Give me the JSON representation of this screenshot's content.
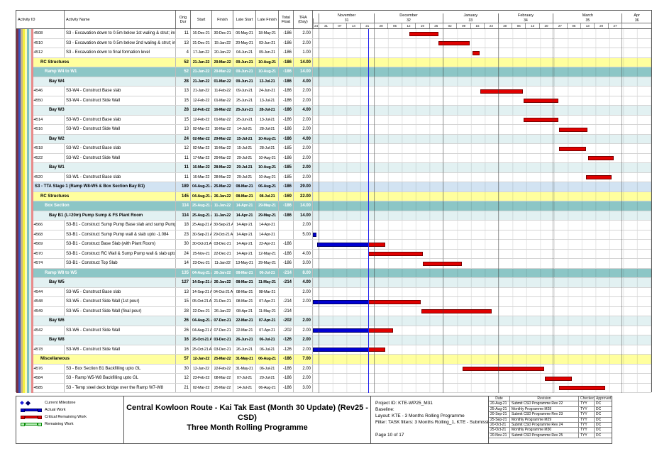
{
  "title": {
    "line1": "Central Kowloon Route - Kai Tak East (Month 30 Update) (Rev25 - CSD)",
    "line2": "Three Month Rolling Programme"
  },
  "info": {
    "project_id": "Project ID: KTE-WP25_M31",
    "baseline": "Baseline:",
    "layout": "Layout: KTE - 3 Months Rolling Programme",
    "filter": "Filter: TASK filters: 3 Months Rolling_1, KTE - Submission.",
    "page": "Page 10 of 17"
  },
  "legend": [
    {
      "key": "current-milestone",
      "label": "Current Milestone"
    },
    {
      "key": "actual-work",
      "label": "Actual Work"
    },
    {
      "key": "critical-remaining-work",
      "label": "Critical Remaining Work"
    },
    {
      "key": "remaining-work",
      "label": "Remaining Work"
    }
  ],
  "revisions": {
    "columns": [
      "Date",
      "Revision",
      "Checked",
      "Approved"
    ],
    "rows": [
      [
        "20-Aug-21",
        "Submit CSD Programme Rev 22",
        "TYY",
        "DC"
      ],
      [
        "25-Aug-21",
        "Monthly Programme M28",
        "TYY",
        "DC"
      ],
      [
        "20-Sep-21",
        "Submit CSD Programme Rev 23",
        "TYY",
        "DC"
      ],
      [
        "25-Sep-21",
        "Monthly Programme M29",
        "TYY",
        "DC"
      ],
      [
        "20-Oct-21",
        "Submit CSD Programme Rev 24",
        "TYY",
        "DC"
      ],
      [
        "25-Oct-21",
        "Monthly Programme M30",
        "TYY",
        "DC"
      ],
      [
        "20-Nov-21",
        "Submit CSD Programme Rev 25",
        "TYY",
        "DC"
      ]
    ]
  },
  "chart_data": {
    "type": "table",
    "subtype": "gantt",
    "columns": [
      "Activity ID",
      "Activity Name",
      "Orig Dur",
      "Start",
      "Finish",
      "Late Start",
      "Late Finish",
      "Total Float",
      "TRA (Day)"
    ],
    "timeline": {
      "window_start": "2021-10-28",
      "window_end": "2022-04-18",
      "total_days": 172,
      "data_date": "2021-11-25",
      "lead_week_label": "24",
      "months": [
        {
          "name": "November",
          "num": "31",
          "days": 28,
          "weeks": [
            "31",
            "07",
            "14",
            "21"
          ]
        },
        {
          "name": "December",
          "num": "32",
          "days": 35,
          "weeks": [
            "28",
            "05",
            "12",
            "19",
            "26"
          ]
        },
        {
          "name": "January",
          "num": "33",
          "days": 28,
          "weeks": [
            "02",
            "09",
            "16",
            "23"
          ]
        },
        {
          "name": "February",
          "num": "34",
          "days": 28,
          "weeks": [
            "30",
            "06",
            "13",
            "20"
          ]
        },
        {
          "name": "March",
          "num": "35",
          "days": 35,
          "weeks": [
            "27",
            "06",
            "13",
            "20",
            "27"
          ]
        }
      ],
      "trailing_month": {
        "name": "Apr",
        "num": "36",
        "days": 15
      }
    },
    "colors": {
      "critical_bar": "#e00000",
      "actual_bar": "#0000d2",
      "remaining_bar": "#33cc33",
      "data_date_line": "#2222ee",
      "band_yellow": "#ffff9e",
      "band_teal": "#8cc6c6",
      "band_bay": "#e2f1f2",
      "band_stage": "#d2e3f2",
      "group_stripes": [
        "#7a3045",
        "#3a56c0",
        "#c9b489",
        "#f5f03e",
        "#fdfcae",
        "#7fc2c2",
        "#d9eded",
        "#e98b8b"
      ]
    },
    "rows": [
      {
        "type": "a",
        "id": "4-4508",
        "name": "S3 - Excavation down to 0.5m below 1st waling & strut; install waling & strut",
        "dur": "11",
        "start": "16-Dec-21",
        "finish": "30-Dec-21",
        "late_start": "06-May-21",
        "late_finish": "18-May-21",
        "float": "-186",
        "tra": "2.00",
        "bars": [
          {
            "kind": "crit",
            "from": "2021-12-16",
            "to": "2021-12-30"
          }
        ]
      },
      {
        "type": "a",
        "id": "4-4510",
        "name": "S3 - Excavation down to 0.5m below 2nd waling & strut; install waling & strut",
        "dur": "13",
        "start": "31-Dec-21",
        "finish": "15-Jan-22",
        "late_start": "20-May-21",
        "late_finish": "03-Jun-21",
        "float": "-186",
        "tra": "2.00",
        "bars": [
          {
            "kind": "crit",
            "from": "2021-12-31",
            "to": "2022-01-15"
          }
        ]
      },
      {
        "type": "a",
        "id": "4-4512",
        "name": "S3 - Excavation down to final formation level",
        "dur": "4",
        "start": "17-Jan-22",
        "finish": "20-Jan-22",
        "late_start": "04-Jun-21",
        "late_finish": "09-Jun-21",
        "float": "-186",
        "tra": "1.00",
        "bars": [
          {
            "kind": "crit",
            "from": "2022-01-17",
            "to": "2022-01-20"
          }
        ]
      },
      {
        "type": "y",
        "name": "RC Structures",
        "dur": "52",
        "start": "21-Jan-22",
        "finish": "29-Mar-22",
        "late_start": "09-Jun-21",
        "late_finish": "10-Aug-21",
        "float": "-186",
        "tra": "14.00",
        "bars": []
      },
      {
        "type": "t",
        "name": "Ramp W4 to W1",
        "dur": "52",
        "start": "21-Jan-22",
        "finish": "29-Mar-22",
        "late_start": "09-Jun-21",
        "late_finish": "10-Aug-21",
        "float": "-186",
        "tra": "14.00",
        "bars": []
      },
      {
        "type": "b",
        "name": "Bay W4",
        "dur": "28",
        "start": "21-Jan-22",
        "finish": "01-Mar-22",
        "late_start": "09-Jun-21",
        "late_finish": "13-Jul-21",
        "float": "-186",
        "tra": "4.00",
        "bars": []
      },
      {
        "type": "a",
        "id": "4-4546",
        "name": "S3-W4 - Construct Base slab",
        "dur": "13",
        "start": "21-Jan-22",
        "finish": "11-Feb-22",
        "late_start": "09-Jun-21",
        "late_finish": "24-Jun-21",
        "float": "-186",
        "tra": "2.00",
        "bars": [
          {
            "kind": "crit",
            "from": "2022-01-21",
            "to": "2022-02-11"
          }
        ]
      },
      {
        "type": "a",
        "id": "4-4550",
        "name": "S3-W4 - Construct Side Wall",
        "dur": "15",
        "start": "12-Feb-22",
        "finish": "01-Mar-22",
        "late_start": "25-Jun-21",
        "late_finish": "13-Jul-21",
        "float": "-186",
        "tra": "2.00",
        "bars": [
          {
            "kind": "crit",
            "from": "2022-02-12",
            "to": "2022-03-01"
          }
        ]
      },
      {
        "type": "b",
        "name": "Bay W3",
        "dur": "28",
        "start": "12-Feb-22",
        "finish": "16-Mar-22",
        "late_start": "25-Jun-21",
        "late_finish": "28-Jul-21",
        "float": "-186",
        "tra": "4.00",
        "bars": []
      },
      {
        "type": "a",
        "id": "4-4514",
        "name": "S3-W3 - Construct Base slab",
        "dur": "15",
        "start": "12-Feb-22",
        "finish": "01-Mar-22",
        "late_start": "25-Jun-21",
        "late_finish": "13-Jul-21",
        "float": "-186",
        "tra": "2.00",
        "bars": [
          {
            "kind": "crit",
            "from": "2022-02-12",
            "to": "2022-03-01"
          }
        ]
      },
      {
        "type": "a",
        "id": "4-4516",
        "name": "S3-W3 - Construct Side Wall",
        "dur": "13",
        "start": "02-Mar-22",
        "finish": "16-Mar-22",
        "late_start": "14-Jul-21",
        "late_finish": "28-Jul-21",
        "float": "-186",
        "tra": "2.00",
        "bars": [
          {
            "kind": "crit",
            "from": "2022-03-02",
            "to": "2022-03-16"
          }
        ]
      },
      {
        "type": "b",
        "name": "Bay W2",
        "dur": "24",
        "start": "02-Mar-22",
        "finish": "29-Mar-22",
        "late_start": "15-Jul-21",
        "late_finish": "10-Aug-21",
        "float": "-186",
        "tra": "4.00",
        "bars": []
      },
      {
        "type": "a",
        "id": "4-4518",
        "name": "S3-W2 - Construct Base slab",
        "dur": "12",
        "start": "02-Mar-22",
        "finish": "15-Mar-22",
        "late_start": "15-Jul-21",
        "late_finish": "28-Jul-21",
        "float": "-185",
        "tra": "2.00",
        "bars": [
          {
            "kind": "crit",
            "from": "2022-03-02",
            "to": "2022-03-15"
          }
        ]
      },
      {
        "type": "a",
        "id": "4-4522",
        "name": "S3-W2 - Construct Side Wall",
        "dur": "11",
        "start": "17-Mar-22",
        "finish": "29-Mar-22",
        "late_start": "29-Jul-21",
        "late_finish": "10-Aug-21",
        "float": "-186",
        "tra": "2.00",
        "bars": [
          {
            "kind": "crit",
            "from": "2022-03-17",
            "to": "2022-03-29"
          }
        ]
      },
      {
        "type": "b",
        "name": "Bay W1",
        "dur": "11",
        "start": "16-Mar-22",
        "finish": "28-Mar-22",
        "late_start": "29-Jul-21",
        "late_finish": "10-Aug-21",
        "float": "-185",
        "tra": "2.00",
        "bars": []
      },
      {
        "type": "a",
        "id": "4-4520",
        "name": "S3-W1 - Construct Base slab",
        "dur": "11",
        "start": "16-Mar-22",
        "finish": "28-Mar-22",
        "late_start": "29-Jul-21",
        "late_finish": "10-Aug-21",
        "float": "-185",
        "tra": "2.00",
        "bars": [
          {
            "kind": "crit",
            "from": "2022-03-16",
            "to": "2022-03-28"
          }
        ]
      },
      {
        "type": "s",
        "name": "S3 - TTA Stage 1 (Ramp W8-W5 & Box Section Bay B1)",
        "dur": "189",
        "start": "04-Aug-21 A",
        "finish": "25-Mar-22",
        "late_start": "08-Mar-21",
        "late_finish": "06-Aug-21",
        "float": "-186",
        "tra": "29.00",
        "bars": []
      },
      {
        "type": "y",
        "name": "RC Structures",
        "dur": "145",
        "start": "04-Aug-21 A",
        "finish": "26-Jan-22",
        "late_start": "08-Mar-21",
        "late_finish": "08-Jul-21",
        "float": "-169",
        "tra": "22.00",
        "bars": []
      },
      {
        "type": "t",
        "name": "Box Section",
        "dur": "114",
        "start": "25-Aug-21 A",
        "finish": "11-Jan-22",
        "late_start": "14-Apr-21",
        "late_finish": "29-May-21",
        "float": "-186",
        "tra": "14.00",
        "bars": []
      },
      {
        "type": "b",
        "name": "Bay B1 (L=20m) Pump Sump & FS Plant Room",
        "dur": "114",
        "start": "25-Aug-21 A",
        "finish": "11-Jan-22",
        "late_start": "14-Apr-21",
        "late_finish": "29-May-21",
        "float": "-186",
        "tra": "14.00",
        "bars": []
      },
      {
        "type": "a",
        "id": "4-4566",
        "name": "S3-B1 - Construct Sump Pump Base slab and sump Pump wall",
        "dur": "18",
        "start": "25-Aug-21 A",
        "finish": "30-Sep-21 A",
        "late_start": "14-Apr-21",
        "late_finish": "14-Apr-21",
        "float": "",
        "tra": "2.00",
        "bars": [
          {
            "kind": "act",
            "from": "2021-08-25",
            "to": "2021-09-30"
          }
        ]
      },
      {
        "type": "a",
        "id": "4-4568",
        "name": "S3-B1 - Construct  Sump Pump wall & slab upto -1.084",
        "dur": "23",
        "start": "30-Sep-21 A",
        "finish": "29-Oct-21 A",
        "late_start": "14-Apr-21",
        "late_finish": "14-Apr-21",
        "float": "",
        "tra": "5.00",
        "bars": [
          {
            "kind": "act",
            "from": "2021-09-30",
            "to": "2021-10-29"
          }
        ]
      },
      {
        "type": "a",
        "id": "4-4569",
        "name": "S3-B1 - Construct Base Slab (with Plant Room)",
        "dur": "30",
        "start": "30-Oct-21 A",
        "finish": "03-Dec-21",
        "late_start": "14-Apr-21",
        "late_finish": "22-Apr-21",
        "float": "-186",
        "tra": "",
        "bars": [
          {
            "kind": "act",
            "from": "2021-10-30",
            "to": "2021-11-25"
          },
          {
            "kind": "crit",
            "from": "2021-11-25",
            "to": "2021-12-03"
          }
        ]
      },
      {
        "type": "a",
        "id": "4-4570",
        "name": "S3-B1 - Construct RC Wall & Sump Pump wall & slab upto +2.916",
        "dur": "24",
        "start": "25-Nov-21",
        "finish": "22-Dec-21",
        "late_start": "14-Apr-21",
        "late_finish": "12-May-21",
        "float": "-186",
        "tra": "4.00",
        "bars": [
          {
            "kind": "crit",
            "from": "2021-11-25",
            "to": "2021-12-22"
          }
        ]
      },
      {
        "type": "a",
        "id": "4-4574",
        "name": "S3-B1 - Construct Top Slab",
        "dur": "14",
        "start": "23-Dec-21",
        "finish": "11-Jan-22",
        "late_start": "13-May-21",
        "late_finish": "29-May-21",
        "float": "-186",
        "tra": "3.00",
        "bars": [
          {
            "kind": "crit",
            "from": "2021-12-23",
            "to": "2022-01-11"
          }
        ]
      },
      {
        "type": "t",
        "name": "Ramp W8 to W5",
        "dur": "135",
        "start": "04-Aug-21 A",
        "finish": "26-Jan-22",
        "late_start": "08-Mar-21",
        "late_finish": "06-Jul-21",
        "float": "-214",
        "tra": "8.00",
        "bars": []
      },
      {
        "type": "b",
        "name": "Bay W5",
        "dur": "127",
        "start": "14-Sep-21 A",
        "finish": "26-Jan-22",
        "late_start": "08-Mar-21",
        "late_finish": "11-May-21",
        "float": "-214",
        "tra": "4.00",
        "bars": []
      },
      {
        "type": "a",
        "id": "4-4544",
        "name": "S3-W5 - Construct Base slab",
        "dur": "13",
        "start": "14-Sep-21 A",
        "finish": "04-Oct-21 A",
        "late_start": "08-Mar-21",
        "late_finish": "08-Mar-21",
        "float": "",
        "tra": "2.00",
        "bars": [
          {
            "kind": "act",
            "from": "2021-09-14",
            "to": "2021-10-04"
          }
        ]
      },
      {
        "type": "a",
        "id": "4-4548",
        "name": "S3-W5 - Construct Side Wall (1st pour)",
        "dur": "15",
        "start": "05-Oct-21 A",
        "finish": "21-Dec-21",
        "late_start": "08-Mar-21",
        "late_finish": "07-Apr-21",
        "float": "-214",
        "tra": "2.00",
        "bars": [
          {
            "kind": "act",
            "from": "2021-10-05",
            "to": "2021-11-25"
          },
          {
            "kind": "crit",
            "from": "2021-11-25",
            "to": "2021-12-21"
          }
        ]
      },
      {
        "type": "a",
        "id": "4-4549",
        "name": "S3-W5 - Construct Side Wall (final pour)",
        "dur": "28",
        "start": "22-Dec-21",
        "finish": "26-Jan-22",
        "late_start": "08-Apr-21",
        "late_finish": "11-May-21",
        "float": "-214",
        "tra": "",
        "bars": [
          {
            "kind": "crit",
            "from": "2021-12-22",
            "to": "2022-01-26"
          }
        ]
      },
      {
        "type": "b",
        "name": "Bay W6",
        "dur": "26",
        "start": "04-Aug-21 A",
        "finish": "07-Dec-21",
        "late_start": "22-Mar-21",
        "late_finish": "07-Apr-21",
        "float": "-202",
        "tra": "2.00",
        "bars": []
      },
      {
        "type": "a",
        "id": "4-4542",
        "name": "S3-W6 - Construct Side Wall",
        "dur": "26",
        "start": "04-Aug-21 A",
        "finish": "07-Dec-21",
        "late_start": "22-Mar-21",
        "late_finish": "07-Apr-21",
        "float": "-202",
        "tra": "2.00",
        "bars": [
          {
            "kind": "act",
            "from": "2021-08-04",
            "to": "2021-11-25"
          },
          {
            "kind": "crit",
            "from": "2021-11-25",
            "to": "2021-12-07"
          }
        ]
      },
      {
        "type": "b",
        "name": "Bay W8",
        "dur": "16",
        "start": "25-Oct-21 A",
        "finish": "03-Dec-21",
        "late_start": "26-Jun-21",
        "late_finish": "06-Jul-21",
        "float": "-126",
        "tra": "2.00",
        "bars": []
      },
      {
        "type": "a",
        "id": "4-4578",
        "name": "S3-W8 - Construct Side Wall",
        "dur": "16",
        "start": "25-Oct-21 A",
        "finish": "03-Dec-21",
        "late_start": "26-Jun-21",
        "late_finish": "06-Jul-21",
        "float": "-126",
        "tra": "2.00",
        "bars": [
          {
            "kind": "act",
            "from": "2021-10-25",
            "to": "2021-11-25"
          },
          {
            "kind": "crit",
            "from": "2021-11-25",
            "to": "2021-12-03"
          }
        ]
      },
      {
        "type": "y",
        "name": "Miscellaneous",
        "dur": "57",
        "start": "12-Jan-22",
        "finish": "25-Mar-22",
        "late_start": "31-May-21",
        "late_finish": "06-Aug-21",
        "float": "-186",
        "tra": "7.00",
        "bars": []
      },
      {
        "type": "a",
        "id": "4-4576",
        "name": "S3 - Box Section B1 Backfilling upto GL",
        "dur": "30",
        "start": "12-Jan-22",
        "finish": "22-Feb-22",
        "late_start": "31-May-21",
        "late_finish": "06-Jul-21",
        "float": "-186",
        "tra": "2.00",
        "bars": [
          {
            "kind": "crit",
            "from": "2022-01-12",
            "to": "2022-02-22"
          }
        ]
      },
      {
        "type": "a",
        "id": "4-4584",
        "name": "S3 - Ramp W5-W8 Backfilling upto GL",
        "dur": "12",
        "start": "23-Feb-22",
        "finish": "08-Mar-22",
        "late_start": "07-Jul-21",
        "late_finish": "20-Jul-21",
        "float": "-186",
        "tra": "2.00",
        "bars": [
          {
            "kind": "crit",
            "from": "2022-02-23",
            "to": "2022-03-08"
          }
        ]
      },
      {
        "type": "a",
        "id": "4-4585",
        "name": "S3 - Temp steel deck bridge over the Ramp W7-W8",
        "dur": "21",
        "start": "02-Mar-22",
        "finish": "25-Mar-22",
        "late_start": "14-Jul-21",
        "late_finish": "06-Aug-21",
        "float": "-186",
        "tra": "3.00",
        "bars": [
          {
            "kind": "crit",
            "from": "2022-03-02",
            "to": "2022-03-25"
          }
        ]
      }
    ]
  }
}
